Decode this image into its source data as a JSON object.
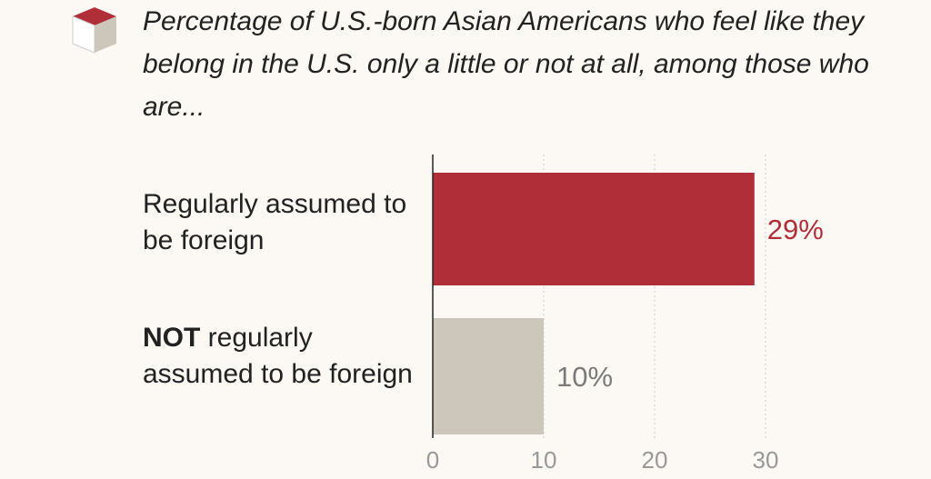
{
  "chart_data": {
    "type": "barh",
    "title": "Percentage of U.S.-born Asian Americans who feel like they belong in the U.S. only a little or not at all, among those who are...",
    "categories": [
      "Regularly assumed to be foreign",
      "NOT regularly assumed to be foreign"
    ],
    "values": [
      29,
      10
    ],
    "value_labels": [
      "29%",
      "10%"
    ],
    "colors": [
      "#b02e38",
      "#cdc6bb"
    ],
    "label_colors": [
      "#b02e38",
      "#7a7a7a"
    ],
    "xlim": [
      0,
      30
    ],
    "xticks": [
      0,
      10,
      20,
      30
    ],
    "grid": true
  }
}
